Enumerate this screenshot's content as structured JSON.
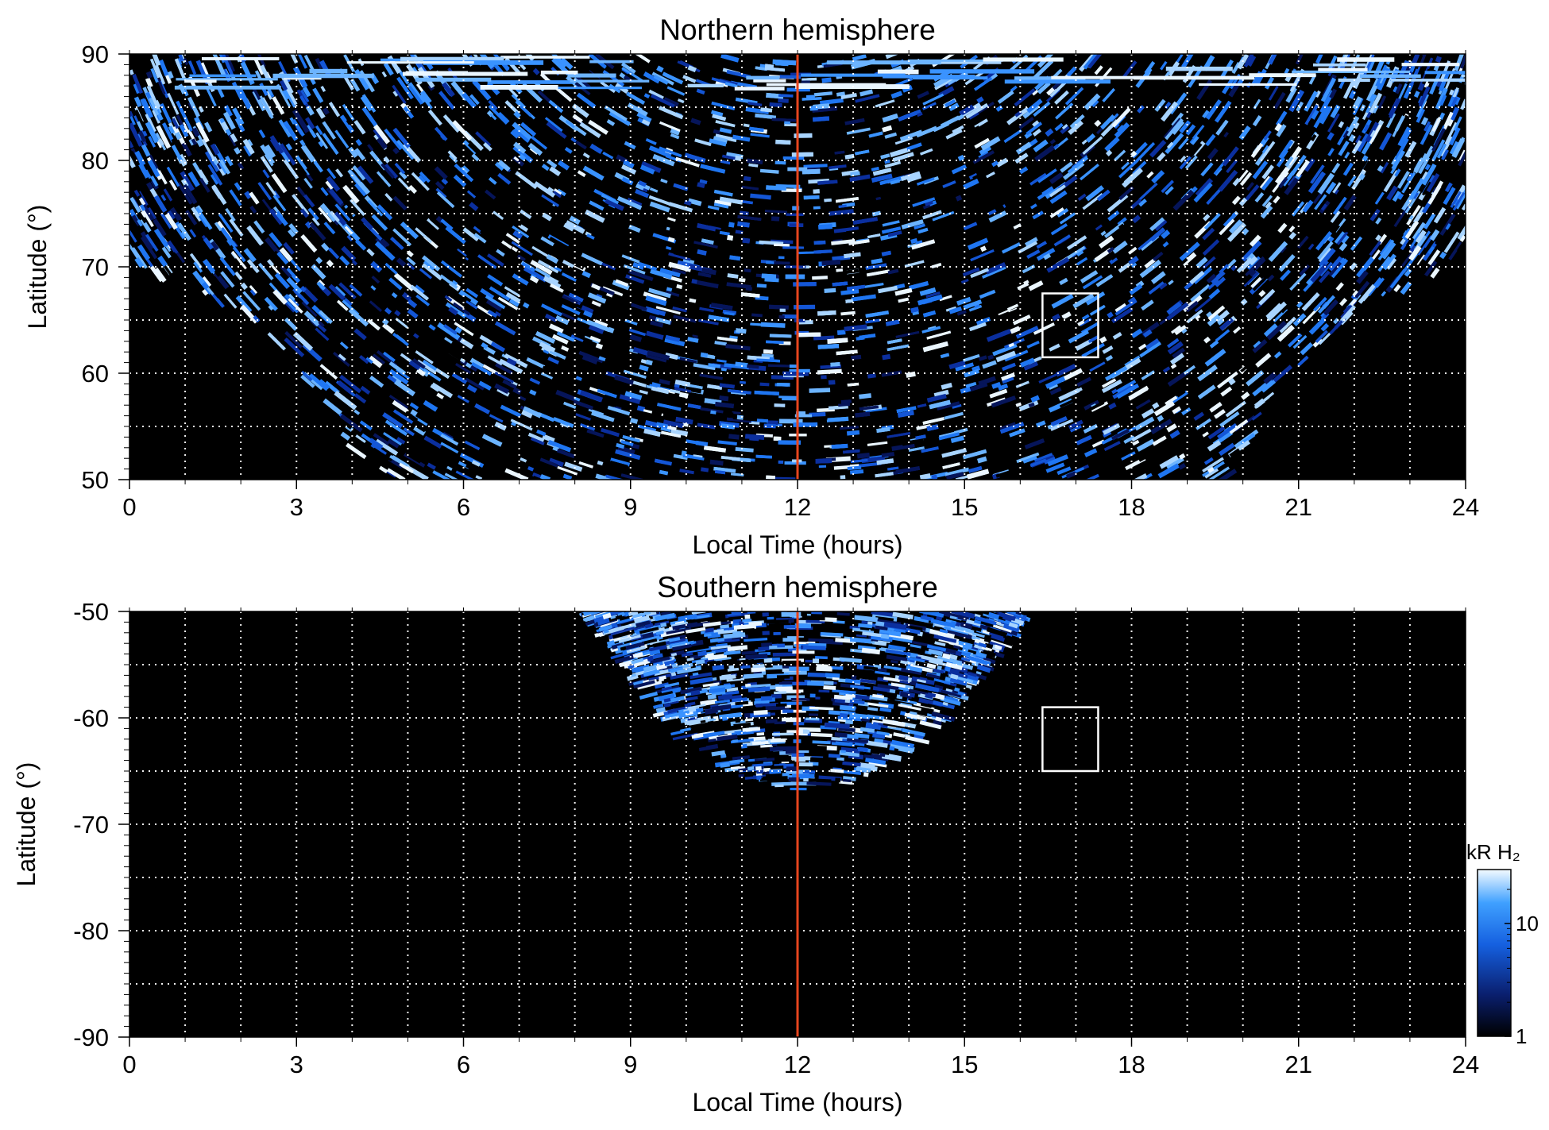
{
  "colors": {
    "background": "#000000",
    "emission_light": "#dff0ff",
    "emission_mid": "#2f8cff",
    "emission_dark": "#0a2a8a",
    "noon_line": "#e8461e",
    "grid": "#ffffff",
    "box": "#ffffff"
  },
  "chart_data": [
    {
      "type": "heatmap",
      "title": "Northern hemisphere",
      "xlabel": "Local Time (hours)",
      "ylabel": "Latitude (°)",
      "xlim": [
        0,
        24
      ],
      "ylim": [
        50,
        90
      ],
      "xticks": [
        0,
        3,
        6,
        9,
        12,
        15,
        18,
        21,
        24
      ],
      "yticks": [
        50,
        60,
        70,
        80,
        90
      ],
      "grid": true,
      "grid_x_step": 1,
      "grid_y_step": 5,
      "noon_line_x": 12,
      "box": {
        "x": [
          16.4,
          17.4
        ],
        "y": [
          61.5,
          67.5
        ]
      },
      "coverage_boundary": [
        {
          "x": 0,
          "y": 70.5
        },
        {
          "x": 1,
          "y": 68
        },
        {
          "x": 2,
          "y": 65
        },
        {
          "x": 3,
          "y": 60.5
        },
        {
          "x": 4,
          "y": 53
        },
        {
          "x": 4.3,
          "y": 50
        },
        {
          "x": 19.8,
          "y": 50
        },
        {
          "x": 20,
          "y": 52
        },
        {
          "x": 21,
          "y": 60
        },
        {
          "x": 22,
          "y": 65.5
        },
        {
          "x": 23,
          "y": 68
        },
        {
          "x": 24,
          "y": 70
        }
      ]
    },
    {
      "type": "heatmap",
      "title": "Southern hemisphere",
      "xlabel": "Local Time (hours)",
      "ylabel": "Latitude (°)",
      "xlim": [
        0,
        24
      ],
      "ylim": [
        -90,
        -50
      ],
      "xticks": [
        0,
        3,
        6,
        9,
        12,
        15,
        18,
        21,
        24
      ],
      "yticks": [
        -90,
        -80,
        -70,
        -60,
        -50
      ],
      "grid": true,
      "grid_x_step": 1,
      "grid_y_step": 5,
      "noon_line_x": 12,
      "box": {
        "x": [
          16.4,
          17.4
        ],
        "y": [
          -65,
          -59
        ]
      },
      "coverage_boundary": [
        {
          "x": 8.3,
          "y": -50
        },
        {
          "x": 9,
          "y": -56
        },
        {
          "x": 10,
          "y": -62
        },
        {
          "x": 11,
          "y": -65.5
        },
        {
          "x": 12,
          "y": -67
        },
        {
          "x": 13,
          "y": -66
        },
        {
          "x": 14,
          "y": -63
        },
        {
          "x": 15,
          "y": -58
        },
        {
          "x": 16,
          "y": -50.5
        }
      ]
    }
  ],
  "colorbar": {
    "label": "kR H₂",
    "scale": "log",
    "range": [
      1,
      30
    ],
    "ticks": [
      {
        "value": 1,
        "label": "1"
      },
      {
        "value": 10,
        "label": "10"
      }
    ]
  }
}
